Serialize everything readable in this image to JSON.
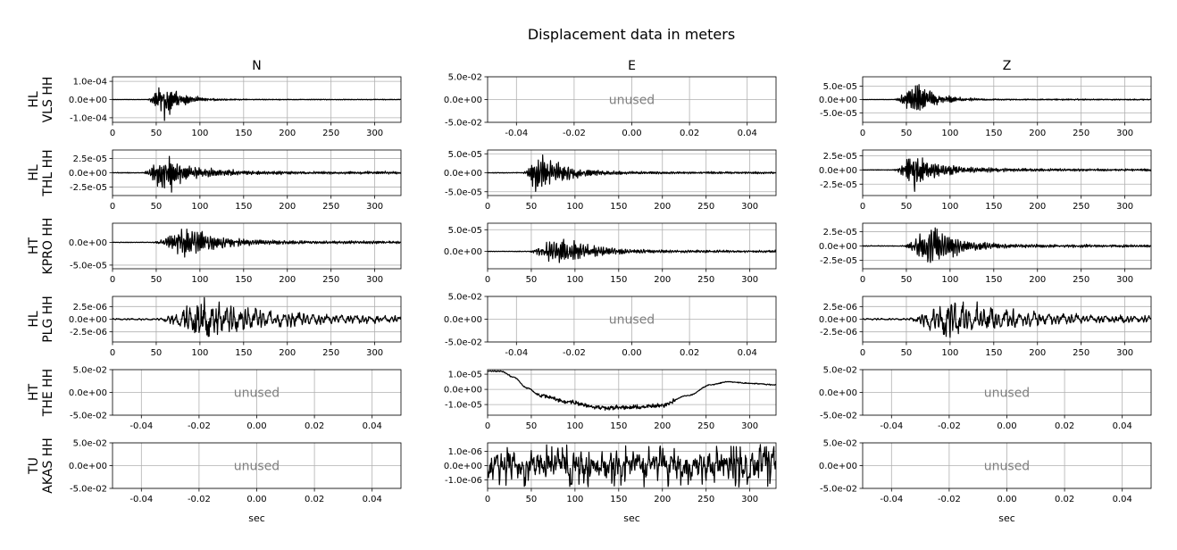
{
  "chart_data": {
    "type": "line",
    "title": "Displacement data in meters",
    "columns": [
      "N",
      "E",
      "Z"
    ],
    "rows": [
      [
        "HL",
        "VLS HH"
      ],
      [
        "HL",
        "THL HH"
      ],
      [
        "HT",
        "KPRO HH"
      ],
      [
        "HL",
        "PLG HH"
      ],
      [
        "HT",
        "THE HH"
      ],
      [
        "TU",
        "AKAS HH"
      ]
    ],
    "xlabel": "sec",
    "unused_text": "unused",
    "colors": {
      "trace": "#000000",
      "grid": "#b0b0b0",
      "unused": "#808080"
    },
    "panels": [
      [
        {
          "used": true,
          "xlim": [
            0,
            330
          ],
          "ylim": [
            -0.000125,
            0.000125
          ],
          "xticks": [
            "0",
            "50",
            "100",
            "150",
            "200",
            "250",
            "300"
          ],
          "yticks": [
            {
              "v": 0.0001,
              "t": "1.0e-04"
            },
            {
              "v": 0,
              "t": "0.0e+00"
            },
            {
              "v": -0.0001,
              "t": "-1.0e-04"
            }
          ],
          "wave": {
            "onset": 40,
            "peak": 57,
            "amp": 0.000125,
            "decay": 18,
            "coda": 0.02,
            "noise": 0.01,
            "freq": 0.55
          }
        },
        {
          "used": false,
          "xlim": [
            -0.05,
            0.05
          ],
          "ylim": [
            -0.05,
            0.05
          ],
          "xticks": [
            "-0.04",
            "-0.02",
            "0.00",
            "0.02",
            "0.04"
          ],
          "yticks": [
            {
              "v": 0.05,
              "t": "5.0e-02"
            },
            {
              "v": 0,
              "t": "0.0e+00"
            },
            {
              "v": -0.05,
              "t": "-5.0e-02"
            }
          ]
        },
        {
          "used": true,
          "xlim": [
            0,
            330
          ],
          "ylim": [
            -8.5e-05,
            8.5e-05
          ],
          "xticks": [
            "0",
            "50",
            "100",
            "150",
            "200",
            "250",
            "300"
          ],
          "yticks": [
            {
              "v": 5e-05,
              "t": "5.0e-05"
            },
            {
              "v": 0,
              "t": "0.0e+00"
            },
            {
              "v": -5e-05,
              "t": "-5.0e-05"
            }
          ],
          "wave": {
            "onset": 35,
            "peak": 60,
            "amp": 8e-05,
            "decay": 20,
            "coda": 0.03,
            "noise": 0.01,
            "freq": 0.55
          }
        }
      ],
      [
        {
          "used": true,
          "xlim": [
            0,
            330
          ],
          "ylim": [
            -4e-05,
            4e-05
          ],
          "xticks": [
            "0",
            "50",
            "100",
            "150",
            "200",
            "250",
            "300"
          ],
          "yticks": [
            {
              "v": 2.5e-05,
              "t": "2.5e-05"
            },
            {
              "v": 0,
              "t": "0.0e+00"
            },
            {
              "v": -2.5e-05,
              "t": "-2.5e-05"
            }
          ],
          "wave": {
            "onset": 35,
            "peak": 57,
            "amp": 4e-05,
            "decay": 30,
            "coda": 0.06,
            "noise": 0.02,
            "freq": 0.5
          }
        },
        {
          "used": true,
          "xlim": [
            0,
            330
          ],
          "ylim": [
            -6e-05,
            6e-05
          ],
          "xticks": [
            "0",
            "50",
            "100",
            "150",
            "200",
            "250",
            "300"
          ],
          "yticks": [
            {
              "v": 5e-05,
              "t": "5.0e-05"
            },
            {
              "v": 0,
              "t": "0.0e+00"
            },
            {
              "v": -5e-05,
              "t": "-5.0e-05"
            }
          ],
          "wave": {
            "onset": 40,
            "peak": 56,
            "amp": 6e-05,
            "decay": 28,
            "coda": 0.05,
            "noise": 0.02,
            "freq": 0.5
          }
        },
        {
          "used": true,
          "xlim": [
            0,
            330
          ],
          "ylim": [
            -4.5e-05,
            3.5e-05
          ],
          "xticks": [
            "0",
            "50",
            "100",
            "150",
            "200",
            "250",
            "300"
          ],
          "yticks": [
            {
              "v": 2.5e-05,
              "t": "2.5e-05"
            },
            {
              "v": 0,
              "t": "0.0e+00"
            },
            {
              "v": -2.5e-05,
              "t": "-2.5e-05"
            }
          ],
          "wave": {
            "onset": 35,
            "peak": 57,
            "amp": 3.5e-05,
            "decay": 30,
            "coda": 0.06,
            "noise": 0.02,
            "freq": 0.5
          }
        }
      ],
      [
        {
          "used": true,
          "xlim": [
            0,
            330
          ],
          "ylim": [
            -5.8e-05,
            4.2e-05
          ],
          "xticks": [
            "0",
            "50",
            "100",
            "150",
            "200",
            "250",
            "300"
          ],
          "yticks": [
            {
              "v": 0,
              "t": "0.0e+00"
            },
            {
              "v": -5e-05,
              "t": "-5.0e-05"
            }
          ],
          "wave": {
            "onset": 45,
            "peak": 82,
            "amp": 4e-05,
            "decay": 35,
            "coda": 0.08,
            "noise": 0.02,
            "freq": 0.45
          }
        },
        {
          "used": true,
          "xlim": [
            0,
            330
          ],
          "ylim": [
            -4e-05,
            6.5e-05
          ],
          "xticks": [
            "0",
            "50",
            "100",
            "150",
            "200",
            "250",
            "300"
          ],
          "yticks": [
            {
              "v": 5e-05,
              "t": "5.0e-05"
            },
            {
              "v": 0,
              "t": "0.0e+00"
            }
          ],
          "wave": {
            "onset": 45,
            "peak": 82,
            "amp": 4e-05,
            "decay": 32,
            "coda": 0.07,
            "noise": 0.02,
            "freq": 0.45
          }
        },
        {
          "used": true,
          "xlim": [
            0,
            330
          ],
          "ylim": [
            -4e-05,
            4e-05
          ],
          "xticks": [
            "0",
            "50",
            "100",
            "150",
            "200",
            "250",
            "300"
          ],
          "yticks": [
            {
              "v": 2.5e-05,
              "t": "2.5e-05"
            },
            {
              "v": 0,
              "t": "0.0e+00"
            },
            {
              "v": -2.5e-05,
              "t": "-2.5e-05"
            }
          ],
          "wave": {
            "onset": 45,
            "peak": 76,
            "amp": 4e-05,
            "decay": 30,
            "coda": 0.06,
            "noise": 0.02,
            "freq": 0.45
          }
        }
      ],
      [
        {
          "used": true,
          "xlim": [
            0,
            330
          ],
          "ylim": [
            -4.5e-06,
            4.5e-06
          ],
          "xticks": [
            "0",
            "50",
            "100",
            "150",
            "200",
            "250",
            "300"
          ],
          "yticks": [
            {
              "v": 2.5e-06,
              "t": "2.5e-06"
            },
            {
              "v": 0,
              "t": "0.0e+00"
            },
            {
              "v": -2.5e-06,
              "t": "-2.5e-06"
            }
          ],
          "wave": {
            "onset": 50,
            "peak": 100,
            "amp": 4.5e-06,
            "decay": 70,
            "coda": 0.12,
            "noise": 0.04,
            "freq": 0.18
          }
        },
        {
          "used": false,
          "xlim": [
            -0.05,
            0.05
          ],
          "ylim": [
            -0.05,
            0.05
          ],
          "xticks": [
            "-0.04",
            "-0.02",
            "0.00",
            "0.02",
            "0.04"
          ],
          "yticks": [
            {
              "v": 0.05,
              "t": "5.0e-02"
            },
            {
              "v": 0,
              "t": "0.0e+00"
            },
            {
              "v": -0.05,
              "t": "-5.0e-02"
            }
          ]
        },
        {
          "used": true,
          "xlim": [
            0,
            330
          ],
          "ylim": [
            -4.5e-06,
            4.5e-06
          ],
          "xticks": [
            "0",
            "50",
            "100",
            "150",
            "200",
            "250",
            "300"
          ],
          "yticks": [
            {
              "v": 2.5e-06,
              "t": "2.5e-06"
            },
            {
              "v": 0,
              "t": "0.0e+00"
            },
            {
              "v": -2.5e-06,
              "t": "-2.5e-06"
            }
          ],
          "wave": {
            "onset": 50,
            "peak": 95,
            "amp": 4.5e-06,
            "decay": 70,
            "coda": 0.12,
            "noise": 0.04,
            "freq": 0.18
          }
        }
      ],
      [
        {
          "used": false,
          "xlim": [
            -0.05,
            0.05
          ],
          "ylim": [
            -0.05,
            0.05
          ],
          "xticks": [
            "-0.04",
            "-0.02",
            "0.00",
            "0.02",
            "0.04"
          ],
          "yticks": [
            {
              "v": 0.05,
              "t": "5.0e-02"
            },
            {
              "v": 0,
              "t": "0.0e+00"
            },
            {
              "v": -0.05,
              "t": "-5.0e-02"
            }
          ]
        },
        {
          "used": true,
          "xlim": [
            0,
            330
          ],
          "ylim": [
            -1.7e-05,
            1.3e-05
          ],
          "xticks": [
            "0",
            "50",
            "100",
            "150",
            "200",
            "250",
            "300"
          ],
          "yticks": [
            {
              "v": 1e-05,
              "t": "1.0e-05"
            },
            {
              "v": 0,
              "t": "0.0e+00"
            },
            {
              "v": -1e-05,
              "t": "-1.0e-05"
            }
          ],
          "drift": {
            "points": [
              [
                0,
                1.2e-05
              ],
              [
                15,
                1.2e-05
              ],
              [
                30,
                8e-06
              ],
              [
                45,
                1e-06
              ],
              [
                60,
                -4e-06
              ],
              [
                90,
                -8e-06
              ],
              [
                130,
                -1.2e-05
              ],
              [
                160,
                -1.2e-05
              ],
              [
                195,
                -1.1e-05
              ],
              [
                230,
                -4e-06
              ],
              [
                255,
                3e-06
              ],
              [
                275,
                5e-06
              ],
              [
                300,
                4e-06
              ],
              [
                330,
                3e-06
              ]
            ],
            "noise": 1.2e-06
          }
        },
        {
          "used": false,
          "xlim": [
            -0.05,
            0.05
          ],
          "ylim": [
            -0.05,
            0.05
          ],
          "xticks": [
            "-0.04",
            "-0.02",
            "0.00",
            "0.02",
            "0.04"
          ],
          "yticks": [
            {
              "v": 0.05,
              "t": "5.0e-02"
            },
            {
              "v": 0,
              "t": "0.0e+00"
            },
            {
              "v": -0.05,
              "t": "-5.0e-02"
            }
          ]
        }
      ],
      [
        {
          "used": false,
          "xlim": [
            -0.05,
            0.05
          ],
          "ylim": [
            -0.05,
            0.05
          ],
          "xticks": [
            "-0.04",
            "-0.02",
            "0.00",
            "0.02",
            "0.04"
          ],
          "yticks": [
            {
              "v": 0.05,
              "t": "5.0e-02"
            },
            {
              "v": 0,
              "t": "0.0e+00"
            },
            {
              "v": -0.05,
              "t": "-5.0e-02"
            }
          ]
        },
        {
          "used": true,
          "xlim": [
            0,
            330
          ],
          "ylim": [
            -1.6e-06,
            1.6e-06
          ],
          "xticks": [
            "0",
            "50",
            "100",
            "150",
            "200",
            "250",
            "300"
          ],
          "yticks": [
            {
              "v": 1e-06,
              "t": "1.0e-06"
            },
            {
              "v": 0,
              "t": "0.0e+00"
            },
            {
              "v": -1e-06,
              "t": "-1.0e-06"
            }
          ],
          "noiseband": {
            "amp": 7e-07,
            "burst": 1.5e-06
          }
        },
        {
          "used": false,
          "xlim": [
            -0.05,
            0.05
          ],
          "ylim": [
            -0.05,
            0.05
          ],
          "xticks": [
            "-0.04",
            "-0.02",
            "0.00",
            "0.02",
            "0.04"
          ],
          "yticks": [
            {
              "v": 0.05,
              "t": "5.0e-02"
            },
            {
              "v": 0,
              "t": "0.0e+00"
            },
            {
              "v": -0.05,
              "t": "-5.0e-02"
            }
          ]
        }
      ]
    ]
  }
}
